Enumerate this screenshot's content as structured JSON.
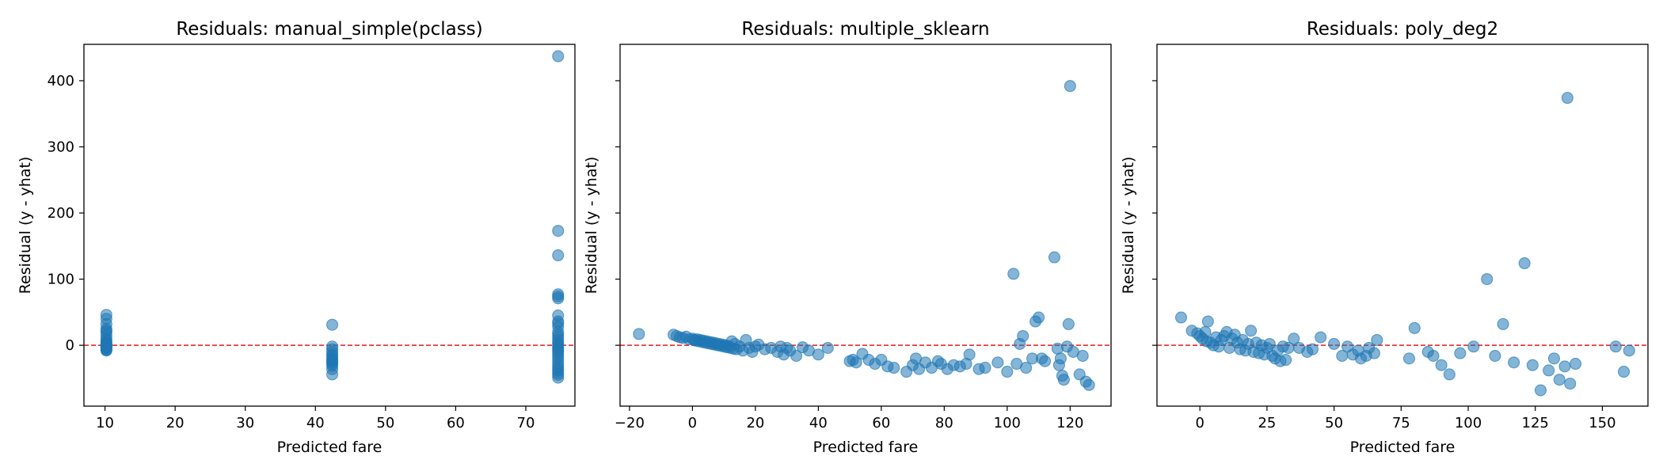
{
  "chart_data": [
    {
      "type": "scatter",
      "title": "Residuals: manual_simple(pclass)",
      "xlabel": "Predicted fare",
      "ylabel": "Residual (y - yhat)",
      "xlim": [
        7,
        77
      ],
      "ylim": [
        -92,
        455
      ],
      "xticks": [
        10,
        20,
        30,
        40,
        50,
        60,
        70
      ],
      "yticks": [
        0,
        100,
        200,
        300,
        400
      ],
      "show_ytick_labels": true,
      "reference_line": {
        "y": 0,
        "color": "#e41a1c",
        "style": "dashed"
      },
      "point_color": "#1f77b4",
      "x": [
        10.2,
        10.2,
        10.2,
        10.2,
        10.2,
        10.2,
        10.2,
        10.2,
        10.2,
        10.2,
        10.2,
        10.2,
        10.2,
        10.2,
        10.2,
        10.2,
        10.2,
        10.2,
        10.2,
        10.2,
        10.2,
        10.2,
        10.2,
        10.2,
        42.4,
        42.4,
        42.4,
        42.4,
        42.4,
        42.4,
        42.4,
        42.4,
        42.4,
        42.4,
        42.4,
        42.4,
        42.4,
        42.4,
        74.6,
        74.6,
        74.6,
        74.6,
        74.6,
        74.6,
        74.6,
        74.6,
        74.6,
        74.6,
        74.6,
        74.6,
        74.6,
        74.6,
        74.6,
        74.6,
        74.6,
        74.6,
        74.6,
        74.6,
        74.6,
        74.6,
        74.6,
        74.6,
        74.6,
        74.6,
        74.6,
        74.6,
        74.6,
        74.6
      ],
      "y": [
        46,
        40,
        32,
        25,
        20,
        15,
        10,
        7,
        5,
        3,
        2,
        1,
        0,
        -1,
        -2,
        -3,
        -4,
        -5,
        -6,
        -7,
        -8,
        -3,
        -2,
        22,
        31,
        -2,
        -6,
        -10,
        -14,
        -16,
        -20,
        -22,
        -24,
        -26,
        -28,
        -31,
        -36,
        -44,
        437,
        173,
        136,
        77,
        74,
        71,
        45,
        36,
        33,
        28,
        20,
        16,
        12,
        8,
        4,
        2,
        -2,
        -4,
        -7,
        -10,
        -14,
        -18,
        -22,
        -27,
        -31,
        -35,
        -38,
        -42,
        -45,
        -49
      ]
    },
    {
      "type": "scatter",
      "title": "Residuals: multiple_sklearn",
      "xlabel": "Predicted fare",
      "ylabel": "Residual (y - yhat)",
      "xlim": [
        -23,
        133
      ],
      "ylim": [
        -92,
        455
      ],
      "xticks": [
        -20,
        0,
        20,
        40,
        60,
        80,
        100,
        120
      ],
      "yticks": [
        0,
        100,
        200,
        300,
        400
      ],
      "show_ytick_labels": false,
      "reference_line": {
        "y": 0,
        "color": "#e41a1c",
        "style": "dashed"
      },
      "point_color": "#1f77b4",
      "x": [
        -17,
        -6,
        -5,
        -4,
        -3,
        -2,
        -1,
        0,
        0.5,
        1,
        1.5,
        2,
        2.5,
        3,
        3.5,
        4,
        4.5,
        5,
        5.5,
        6,
        6.5,
        7,
        7.5,
        8,
        8.5,
        9,
        9.5,
        10,
        10.5,
        11,
        11.5,
        12,
        12.5,
        13,
        13.5,
        14,
        15,
        16,
        17,
        18,
        19,
        20,
        21,
        23,
        25,
        27,
        28,
        29,
        30,
        31,
        33,
        35,
        37,
        40,
        43,
        50,
        51,
        52,
        54,
        56,
        58,
        60,
        62,
        64,
        68,
        70,
        71,
        72,
        74,
        76,
        78,
        79,
        81,
        83,
        85,
        87,
        88,
        91,
        93,
        97,
        100,
        102,
        103,
        104,
        105,
        106,
        108,
        109,
        110,
        111,
        112,
        115,
        116,
        116.5,
        117,
        117.5,
        118,
        119,
        119.5,
        120,
        121,
        123,
        124,
        125,
        126
      ],
      "y": [
        17,
        16,
        14,
        12,
        11,
        13,
        9,
        10,
        8,
        7,
        9,
        6,
        8,
        5,
        7,
        4,
        6,
        3,
        5,
        2,
        4,
        1,
        3,
        0,
        2,
        -1,
        1,
        -2,
        0,
        -3,
        -1,
        -4,
        6,
        -5,
        2,
        -6,
        -2,
        -8,
        8,
        -4,
        -10,
        -2,
        1,
        -6,
        -4,
        -10,
        -2,
        -14,
        -4,
        -8,
        -16,
        -3,
        -8,
        -14,
        -4,
        -24,
        -22,
        -26,
        -13,
        -22,
        -28,
        -22,
        -32,
        -34,
        -40,
        -30,
        -20,
        -36,
        -26,
        -34,
        -24,
        -28,
        -36,
        -30,
        -32,
        -28,
        -14,
        -36,
        -34,
        -26,
        -40,
        108,
        -28,
        2,
        14,
        -34,
        -20,
        36,
        42,
        -20,
        -24,
        133,
        -5,
        -30,
        -20,
        -46,
        -52,
        -2,
        32,
        392,
        -10,
        -44,
        -16,
        -55,
        -60
      ]
    },
    {
      "type": "scatter",
      "title": "Residuals: poly_deg2",
      "xlabel": "Predicted fare",
      "ylabel": "Residual (y - yhat)",
      "xlim": [
        -16,
        167
      ],
      "ylim": [
        -92,
        455
      ],
      "xticks": [
        0,
        25,
        50,
        75,
        100,
        125,
        150
      ],
      "yticks": [
        0,
        100,
        200,
        300,
        400
      ],
      "show_ytick_labels": false,
      "reference_line": {
        "y": 0,
        "color": "#e41a1c",
        "style": "dashed"
      },
      "point_color": "#1f77b4",
      "x": [
        -7,
        -3,
        -1,
        0,
        1,
        2,
        2.5,
        3,
        4,
        5,
        6,
        7,
        8,
        9,
        10,
        11,
        12,
        13,
        14,
        15,
        16,
        17,
        18,
        19,
        20,
        21,
        22,
        23,
        24,
        25,
        26,
        27,
        28,
        29,
        30,
        31,
        32,
        33,
        35,
        37,
        40,
        42,
        45,
        50,
        53,
        55,
        57,
        59,
        60,
        62,
        63,
        65,
        66,
        78,
        80,
        85,
        87,
        90,
        93,
        97,
        102,
        107,
        110,
        113,
        117,
        121,
        124,
        127,
        130,
        132,
        134,
        136,
        137,
        138,
        140,
        155,
        158,
        160
      ],
      "y": [
        42,
        22,
        18,
        14,
        10,
        20,
        6,
        36,
        4,
        0,
        12,
        -2,
        8,
        14,
        20,
        -4,
        10,
        16,
        4,
        -6,
        8,
        -8,
        2,
        22,
        -10,
        4,
        -12,
        0,
        -14,
        -4,
        2,
        -16,
        -20,
        -8,
        -24,
        -2,
        -22,
        -4,
        10,
        -4,
        -10,
        -6,
        12,
        2,
        -16,
        -2,
        -14,
        -8,
        -20,
        -16,
        -4,
        -12,
        8,
        -20,
        26,
        -10,
        -16,
        -30,
        -44,
        -12,
        -2,
        100,
        -16,
        32,
        -26,
        124,
        -30,
        -68,
        -38,
        -20,
        -52,
        -32,
        374,
        -58,
        -28,
        -2,
        -40,
        -8
      ]
    }
  ]
}
